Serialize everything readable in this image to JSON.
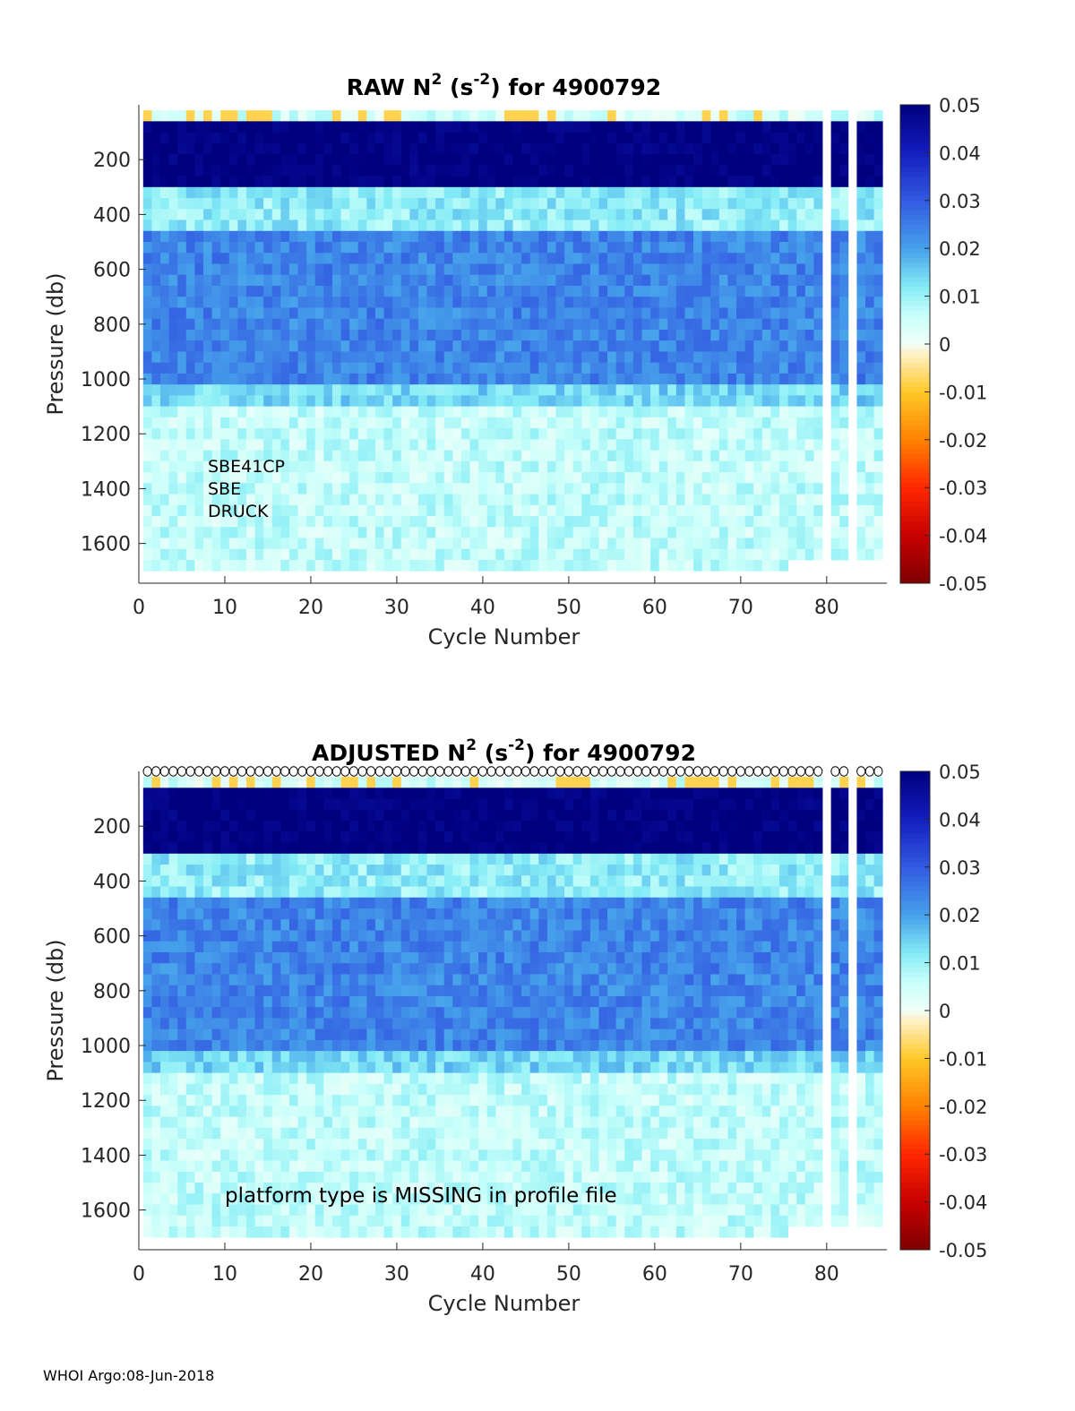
{
  "footer": "WHOI Argo:08-Jun-2018",
  "colorbar": {
    "range": [
      -0.05,
      0.05
    ],
    "ticks": [
      "0.05",
      "0.04",
      "0.03",
      "0.02",
      "0.01",
      "0",
      "-0.01",
      "-0.02",
      "-0.03",
      "-0.04",
      "-0.05"
    ],
    "colormap": "blue-cyan-white-yellow-red",
    "colors": {
      "high": "#00007f",
      "mid_high": "#3b6ee8",
      "near_zero_pos": "#e8fff8",
      "near_zero_neg": "#ffe9b0",
      "low": "#7f0000"
    }
  },
  "chart_data": [
    {
      "type": "heatmap",
      "title_main": "RAW N",
      "title_sup": "2",
      "title_unit_open": " (s",
      "title_unit_sup": "-2",
      "title_rest": ") for 4900792",
      "xlabel": "Cycle Number",
      "ylabel": "Pressure (db)",
      "xlim": [
        0,
        87
      ],
      "ylim": [
        0,
        1745
      ],
      "y_reversed": true,
      "xticks": [
        "0",
        "10",
        "20",
        "30",
        "40",
        "50",
        "60",
        "70",
        "80"
      ],
      "yticks": [
        "200",
        "400",
        "600",
        "800",
        "1000",
        "1200",
        "1400",
        "1600"
      ],
      "annotations": [
        "SBE41CP",
        "SBE",
        "DRUCK"
      ],
      "layers": [
        {
          "p_min": 0,
          "p_max": 40,
          "n2": 0.004
        },
        {
          "p_min": 40,
          "p_max": 270,
          "n2": 0.05
        },
        {
          "p_min": 270,
          "p_max": 450,
          "n2": 0.011
        },
        {
          "p_min": 450,
          "p_max": 1000,
          "n2": 0.024
        },
        {
          "p_min": 1000,
          "p_max": 1100,
          "n2": 0.014
        },
        {
          "p_min": 1100,
          "p_max": 1700,
          "n2": 0.006
        }
      ],
      "missing_cycles": [
        80,
        83
      ],
      "cycle_range": [
        1,
        86
      ],
      "markers": false
    },
    {
      "type": "heatmap",
      "title_main": "ADJUSTED N",
      "title_sup": "2",
      "title_unit_open": " (s",
      "title_unit_sup": "-2",
      "title_rest": ") for 4900792",
      "xlabel": "Cycle Number",
      "ylabel": "Pressure (db)",
      "xlim": [
        0,
        87
      ],
      "ylim": [
        0,
        1745
      ],
      "y_reversed": true,
      "xticks": [
        "0",
        "10",
        "20",
        "30",
        "40",
        "50",
        "60",
        "70",
        "80"
      ],
      "yticks": [
        "200",
        "400",
        "600",
        "800",
        "1000",
        "1200",
        "1400",
        "1600"
      ],
      "annotations": [
        "platform type is MISSING in profile file"
      ],
      "layers": [
        {
          "p_min": 0,
          "p_max": 40,
          "n2": 0.004
        },
        {
          "p_min": 40,
          "p_max": 270,
          "n2": 0.05
        },
        {
          "p_min": 270,
          "p_max": 450,
          "n2": 0.011
        },
        {
          "p_min": 450,
          "p_max": 1000,
          "n2": 0.024
        },
        {
          "p_min": 1000,
          "p_max": 1100,
          "n2": 0.014
        },
        {
          "p_min": 1100,
          "p_max": 1700,
          "n2": 0.006
        }
      ],
      "missing_cycles": [
        80,
        83
      ],
      "cycle_range": [
        1,
        86
      ],
      "markers": true
    }
  ]
}
